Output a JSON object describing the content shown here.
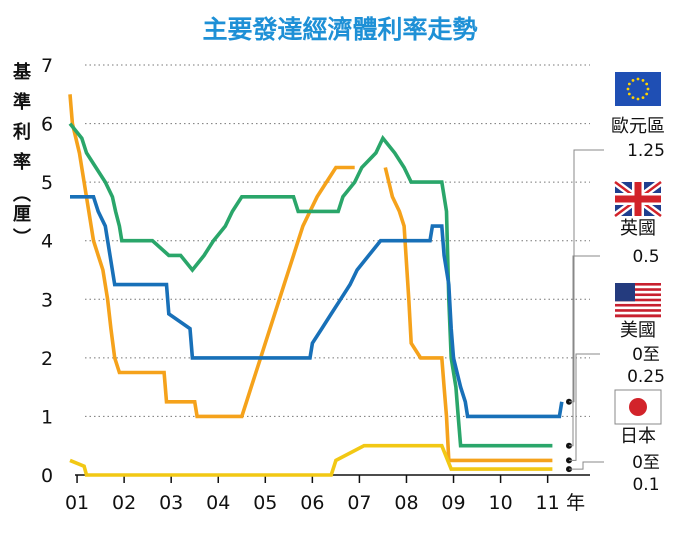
{
  "chart_data": {
    "type": "line",
    "title": "主要發達經濟體利率走勢",
    "ylabel_chars": [
      "基",
      "準",
      "利",
      "率",
      "︵",
      "厘",
      "︶"
    ],
    "xlabel_suffix": "年",
    "ylim": [
      0,
      7
    ],
    "xlim": [
      2000.85,
      2012.0
    ],
    "y_ticks": [
      "0",
      "1",
      "2",
      "3",
      "4",
      "5",
      "6",
      "7"
    ],
    "x_ticks": [
      {
        "label": "01",
        "x": 2001.0
      },
      {
        "label": "02",
        "x": 2002.0
      },
      {
        "label": "03",
        "x": 2003.0
      },
      {
        "label": "04",
        "x": 2004.0
      },
      {
        "label": "05",
        "x": 2005.0
      },
      {
        "label": "06",
        "x": 2006.0
      },
      {
        "label": "07",
        "x": 2007.0
      },
      {
        "label": "08",
        "x": 2008.0
      },
      {
        "label": "09",
        "x": 2009.0
      },
      {
        "label": "10",
        "x": 2010.0
      },
      {
        "label": "11",
        "x": 2011.0
      }
    ],
    "grid": "dotted horizontal",
    "series": [
      {
        "name": "英國",
        "color": "#2aa66a",
        "label_value": "0.5",
        "flag": "uk",
        "points": [
          [
            2000.85,
            6.0
          ],
          [
            2001.1,
            5.75
          ],
          [
            2001.2,
            5.5
          ],
          [
            2001.4,
            5.25
          ],
          [
            2001.6,
            5.0
          ],
          [
            2001.75,
            4.75
          ],
          [
            2001.82,
            4.5
          ],
          [
            2001.9,
            4.25
          ],
          [
            2001.95,
            4.0
          ],
          [
            2002.6,
            4.0
          ],
          [
            2002.95,
            3.75
          ],
          [
            2003.2,
            3.75
          ],
          [
            2003.45,
            3.5
          ],
          [
            2003.7,
            3.75
          ],
          [
            2003.9,
            4.0
          ],
          [
            2004.15,
            4.25
          ],
          [
            2004.3,
            4.5
          ],
          [
            2004.5,
            4.75
          ],
          [
            2005.6,
            4.75
          ],
          [
            2005.7,
            4.5
          ],
          [
            2006.55,
            4.5
          ],
          [
            2006.65,
            4.75
          ],
          [
            2006.9,
            5.0
          ],
          [
            2007.05,
            5.25
          ],
          [
            2007.35,
            5.5
          ],
          [
            2007.5,
            5.75
          ],
          [
            2007.75,
            5.5
          ],
          [
            2007.95,
            5.25
          ],
          [
            2008.1,
            5.0
          ],
          [
            2008.75,
            5.0
          ],
          [
            2008.85,
            4.5
          ],
          [
            2008.9,
            3.0
          ],
          [
            2008.95,
            2.0
          ],
          [
            2009.05,
            1.5
          ],
          [
            2009.1,
            1.0
          ],
          [
            2009.15,
            0.5
          ],
          [
            2011.1,
            0.5
          ]
        ]
      },
      {
        "name": "美國",
        "color": "#f5a21b",
        "label_value": "0至\n0.25",
        "flag": "us",
        "points": [
          [
            2000.85,
            6.5
          ],
          [
            2000.9,
            6.0
          ],
          [
            2001.05,
            5.5
          ],
          [
            2001.15,
            5.0
          ],
          [
            2001.25,
            4.5
          ],
          [
            2001.35,
            4.0
          ],
          [
            2001.45,
            3.75
          ],
          [
            2001.55,
            3.5
          ],
          [
            2001.65,
            3.0
          ],
          [
            2001.72,
            2.5
          ],
          [
            2001.8,
            2.0
          ],
          [
            2001.9,
            1.75
          ],
          [
            2002.85,
            1.75
          ],
          [
            2002.9,
            1.25
          ],
          [
            2003.5,
            1.25
          ],
          [
            2003.55,
            1.0
          ],
          [
            2004.5,
            1.0
          ],
          [
            2004.6,
            1.25
          ],
          [
            2004.7,
            1.5
          ],
          [
            2004.8,
            1.75
          ],
          [
            2004.9,
            2.0
          ],
          [
            2005.0,
            2.25
          ],
          [
            2005.1,
            2.5
          ],
          [
            2005.2,
            2.75
          ],
          [
            2005.3,
            3.0
          ],
          [
            2005.4,
            3.25
          ],
          [
            2005.5,
            3.5
          ],
          [
            2005.6,
            3.75
          ],
          [
            2005.7,
            4.0
          ],
          [
            2005.8,
            4.25
          ],
          [
            2005.95,
            4.5
          ],
          [
            2006.1,
            4.75
          ],
          [
            2006.3,
            5.0
          ],
          [
            2006.5,
            5.25
          ],
          [
            2006.9,
            5.25
          ]
        ]
      },
      {
        "name": "美國-2",
        "color": "#f5a21b",
        "label_value": "",
        "flag": "",
        "points": [
          [
            2007.55,
            5.25
          ],
          [
            2007.7,
            4.75
          ],
          [
            2007.85,
            4.5
          ],
          [
            2007.95,
            4.25
          ],
          [
            2008.05,
            3.0
          ],
          [
            2008.1,
            2.25
          ],
          [
            2008.3,
            2.0
          ],
          [
            2008.75,
            2.0
          ],
          [
            2008.8,
            1.5
          ],
          [
            2008.85,
            1.0
          ],
          [
            2008.9,
            0.25
          ],
          [
            2011.1,
            0.25
          ]
        ]
      },
      {
        "name": "歐元區",
        "color": "#1870b8",
        "label_value": "1.25",
        "flag": "eu",
        "points": [
          [
            2000.85,
            4.75
          ],
          [
            2001.35,
            4.75
          ],
          [
            2001.45,
            4.5
          ],
          [
            2001.6,
            4.25
          ],
          [
            2001.7,
            3.75
          ],
          [
            2001.8,
            3.25
          ],
          [
            2002.9,
            3.25
          ],
          [
            2002.95,
            2.75
          ],
          [
            2003.4,
            2.5
          ],
          [
            2003.45,
            2.0
          ],
          [
            2005.95,
            2.0
          ],
          [
            2006.0,
            2.25
          ],
          [
            2006.2,
            2.5
          ],
          [
            2006.4,
            2.75
          ],
          [
            2006.6,
            3.0
          ],
          [
            2006.8,
            3.25
          ],
          [
            2006.95,
            3.5
          ],
          [
            2007.2,
            3.75
          ],
          [
            2007.45,
            4.0
          ],
          [
            2008.5,
            4.0
          ],
          [
            2008.55,
            4.25
          ],
          [
            2008.75,
            4.25
          ],
          [
            2008.8,
            3.75
          ],
          [
            2008.9,
            3.25
          ],
          [
            2008.95,
            2.5
          ],
          [
            2009.0,
            2.0
          ],
          [
            2009.15,
            1.5
          ],
          [
            2009.25,
            1.25
          ],
          [
            2009.3,
            1.0
          ],
          [
            2011.25,
            1.0
          ],
          [
            2011.3,
            1.25
          ]
        ]
      },
      {
        "name": "日本",
        "color": "#f2c814",
        "label_value": "0至\n0.1",
        "flag": "jp",
        "points": [
          [
            2000.85,
            0.25
          ],
          [
            2001.15,
            0.15
          ],
          [
            2001.2,
            0.0
          ],
          [
            2006.4,
            0.0
          ],
          [
            2006.5,
            0.25
          ],
          [
            2007.1,
            0.5
          ],
          [
            2008.75,
            0.5
          ],
          [
            2008.85,
            0.3
          ],
          [
            2008.95,
            0.1
          ],
          [
            2011.1,
            0.1
          ]
        ]
      }
    ],
    "legend": [
      {
        "label": "歐元區",
        "value": "1.25",
        "flag": "eu"
      },
      {
        "label": "英國",
        "value": "0.5",
        "flag": "uk"
      },
      {
        "label": "美國",
        "value": "0至\n0.25",
        "flag": "us"
      },
      {
        "label": "日本",
        "value": "0至\n0.1",
        "flag": "jp"
      }
    ]
  }
}
